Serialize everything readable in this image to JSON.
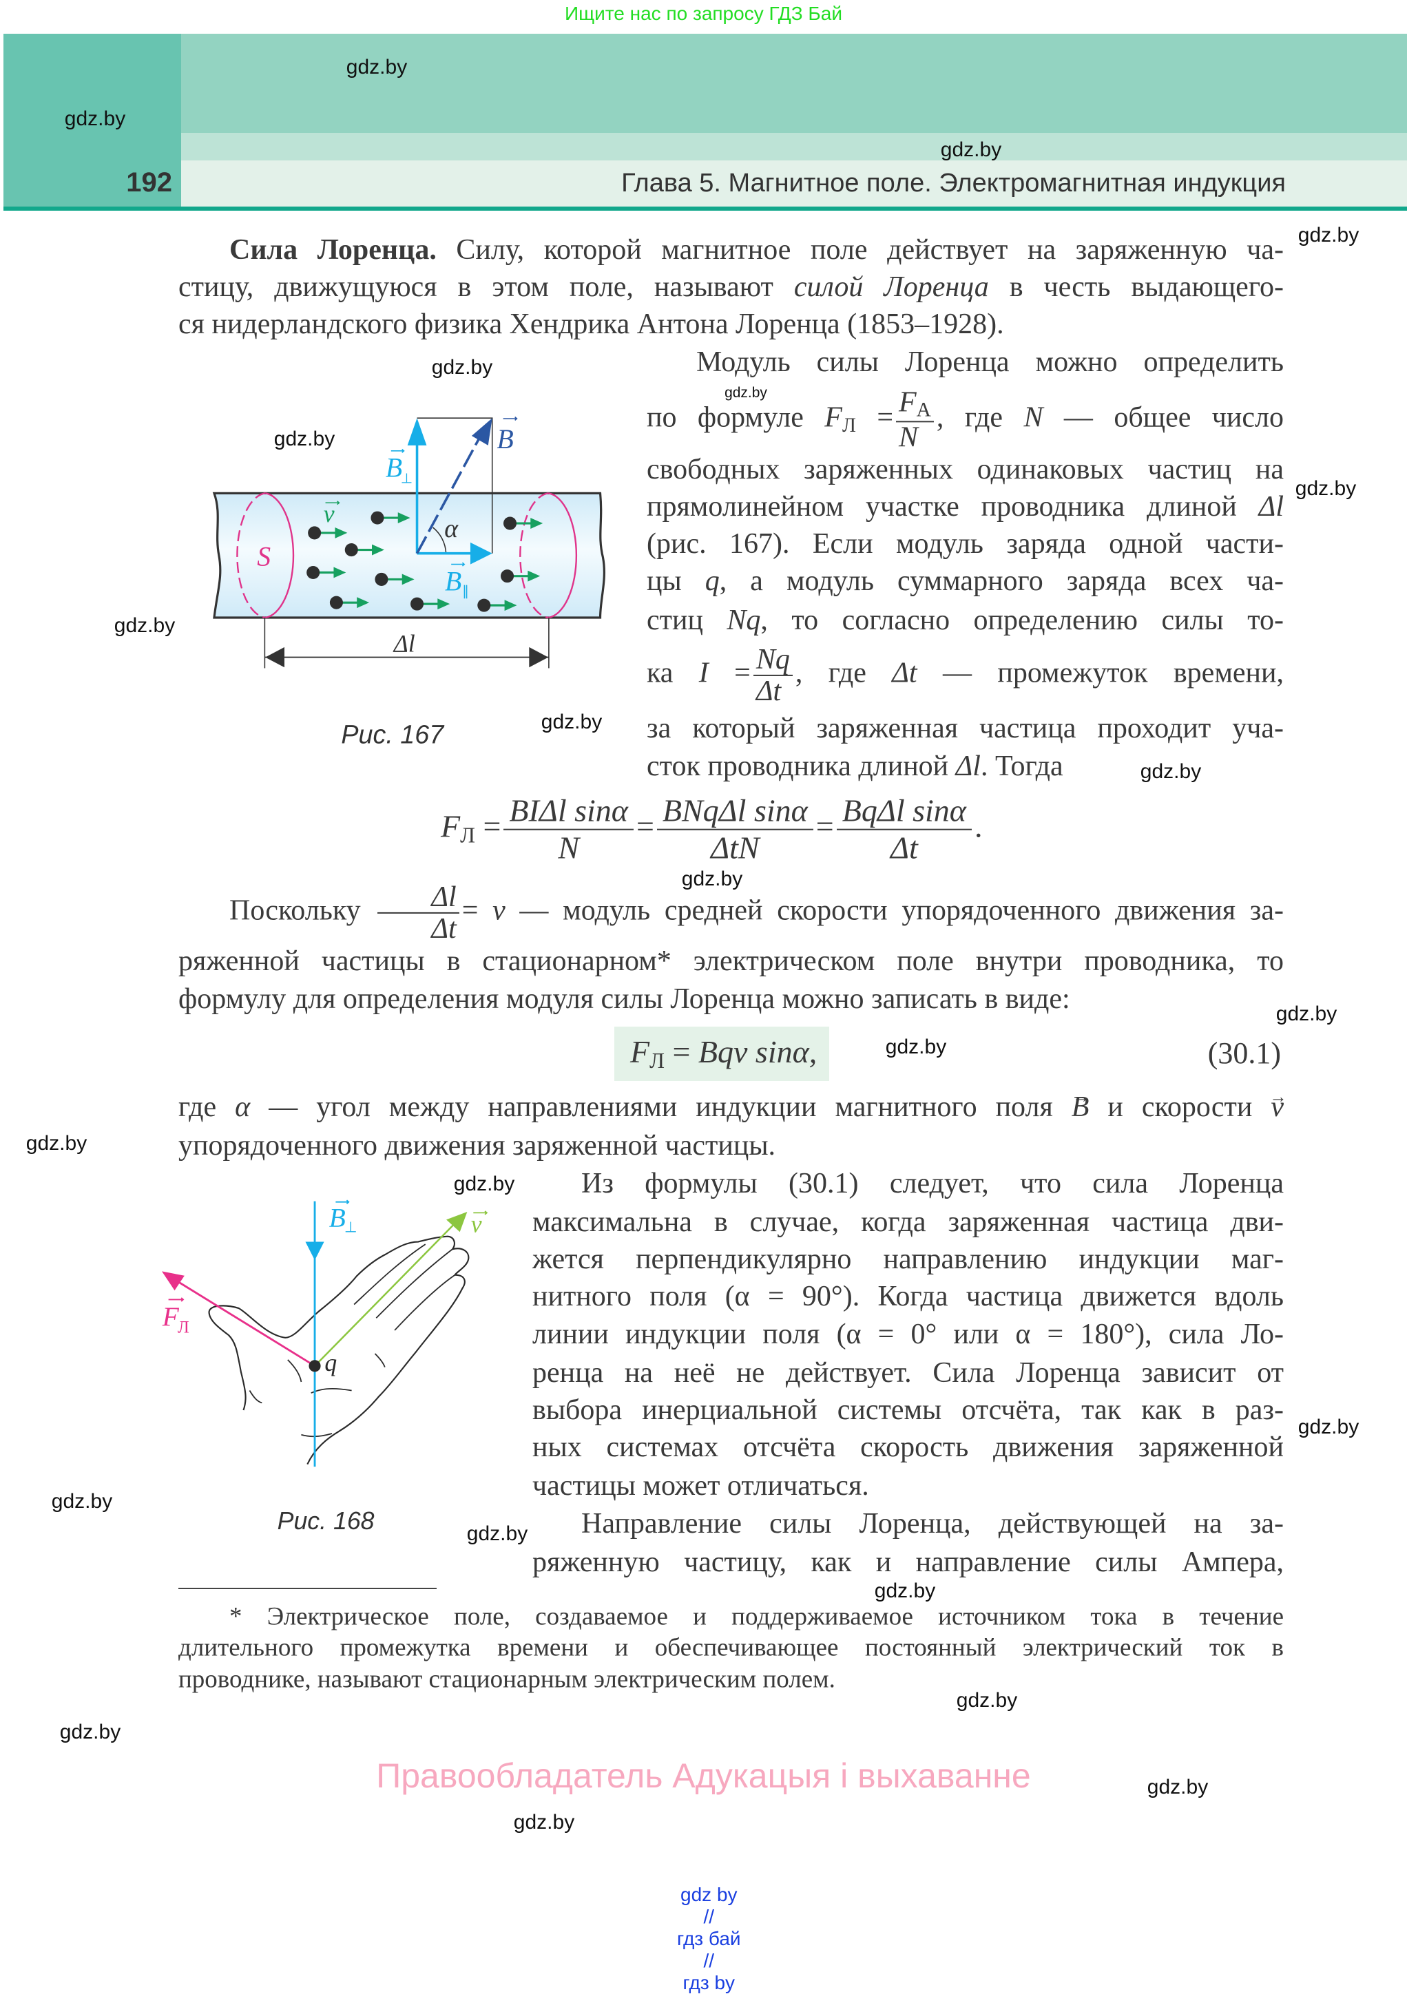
{
  "top_banner": "Ищите нас по запросу ГДЗ Бай",
  "header": {
    "page_number": "192",
    "chapter_title": "Глава 5. Магнитное поле. Электромагнитная индукция",
    "colors": {
      "side": "#68c4b0",
      "top": "#93d3c1",
      "mid": "#bde3d6",
      "low": "#e3f1e9",
      "rule": "#12a88c"
    }
  },
  "watermark": "gdz.by",
  "math": {
    "F": "F",
    "L": "Л",
    "A": "А",
    "N": "N",
    "eq": "=",
    "dl": "Δl",
    "q": "q",
    "Nq": "Nq",
    "I": "I",
    "dt": "Δt",
    "v": "v",
    "B": "B",
    "alpha": "α",
    "f1_num": "BIΔl sinα",
    "f1_den": "N",
    "f2_num": "BNqΔl sinα",
    "f2_den": "ΔtN",
    "f3_num": "BqΔl sinα",
    "f3_den": "Δt",
    "period": ".",
    "box_rhs": "Bqv sinα,",
    "box_number": "(30.1)"
  },
  "p1": {
    "l1_bold": "Сила Лоренца.",
    "l1": " Силу, которой магнитное поле действует на заряженную ча-",
    "l2a": "стицу, движущуюся в этом поле, называют ",
    "l2_em": "силой Лоренца",
    "l2b": " в честь выдающего-",
    "l3": "ся нидерландского физика Хендрика Антона Лоренца (1853–1928)."
  },
  "p2": {
    "r1": "Модуль силы Лоренца можно определить",
    "r2a": "по формуле ",
    "r2b": ", где ",
    "r2c": " — общее число",
    "r3": "свободных заряженных одинаковых частиц на",
    "r4a": "прямолинейном участке проводника длиной ",
    "r5": "(рис. 167). Если модуль заряда одной части-",
    "r6a": "цы ",
    "r6b": ", а модуль суммарного заряда всех ча-",
    "r7a": "стиц ",
    "r7b": ", то согласно определению силы то-",
    "r8a": "ка ",
    "r8b": ", где ",
    "r8c": " — промежуток времени,",
    "r9": "за который заряженная частица проходит уча-",
    "r10a": "сток проводника длиной ",
    "r10b": ". Тогда"
  },
  "p3": {
    "l1a": "Поскольку ",
    "l1b": " — модуль средней скорости упорядоченного движения за-",
    "l2": "ряженной частицы в стационарном* электрическом поле внутри проводника, то",
    "l3": "формулу для определения модуля силы Лоренца можно записать в виде:"
  },
  "p4": {
    "l1a": "где ",
    "l1b": " — угол между направлениями индукции магнитного поля ",
    "l1c": " и скорости ",
    "l2": "упорядоченного движения заряженной частицы."
  },
  "p5": [
    "Из формулы (30.1) следует, что сила Лоренца",
    "максимальна в случае, когда заряженная частица дви-",
    "жется перпендикулярно направлению индукции маг-",
    "нитного поля (α = 90°). Когда частица движется вдоль",
    "линии индукции поля (α = 0° или α = 180°), сила Ло-",
    "ренца на неё не действует. Сила Лоренца зависит от",
    "выбора инерциальной системы отсчёта, так как в раз-",
    "ных системах отсчёта скорость движения заряженной",
    "частицы может отличаться."
  ],
  "p6": [
    "Направление силы Лоренца, действующей на за-",
    "ряженную частицу, как и направление силы Ампера,"
  ],
  "footnote": [
    "* Электрическое поле, создаваемое и поддерживаемое источником тока в течение",
    "длительного промежутка времени и обеспечивающее постоянный электрический ток в",
    "проводнике, называют стационарным электрическим полем."
  ],
  "fig167": {
    "caption": "Рис. 167",
    "labels": {
      "B_perp": "B",
      "perp": "⊥",
      "B": "B",
      "v": "v",
      "alpha": "α",
      "S": "S",
      "B_par": "B",
      "par": "∥",
      "dl": "Δl"
    },
    "colors": {
      "tube": "#d6eef9",
      "section": "#e0338a",
      "b_components": "#17aee8",
      "b": "#2b57a3",
      "velocity": "#17a060",
      "charge": "#2f2f2f"
    }
  },
  "fig168": {
    "caption": "Рис. 168",
    "labels": {
      "B_perp": "B",
      "perp": "⊥",
      "v": "v",
      "F": "F",
      "L": "Л",
      "q": "q"
    },
    "colors": {
      "b": "#17aee8",
      "velocity": "#8cc63f",
      "force": "#e8308a"
    }
  },
  "copyright": "Правообладатель Адукацыя і выхаванне",
  "footer_links": [
    "gdz by",
    "гдз бай",
    "гдз by"
  ],
  "footer_sep": "//"
}
